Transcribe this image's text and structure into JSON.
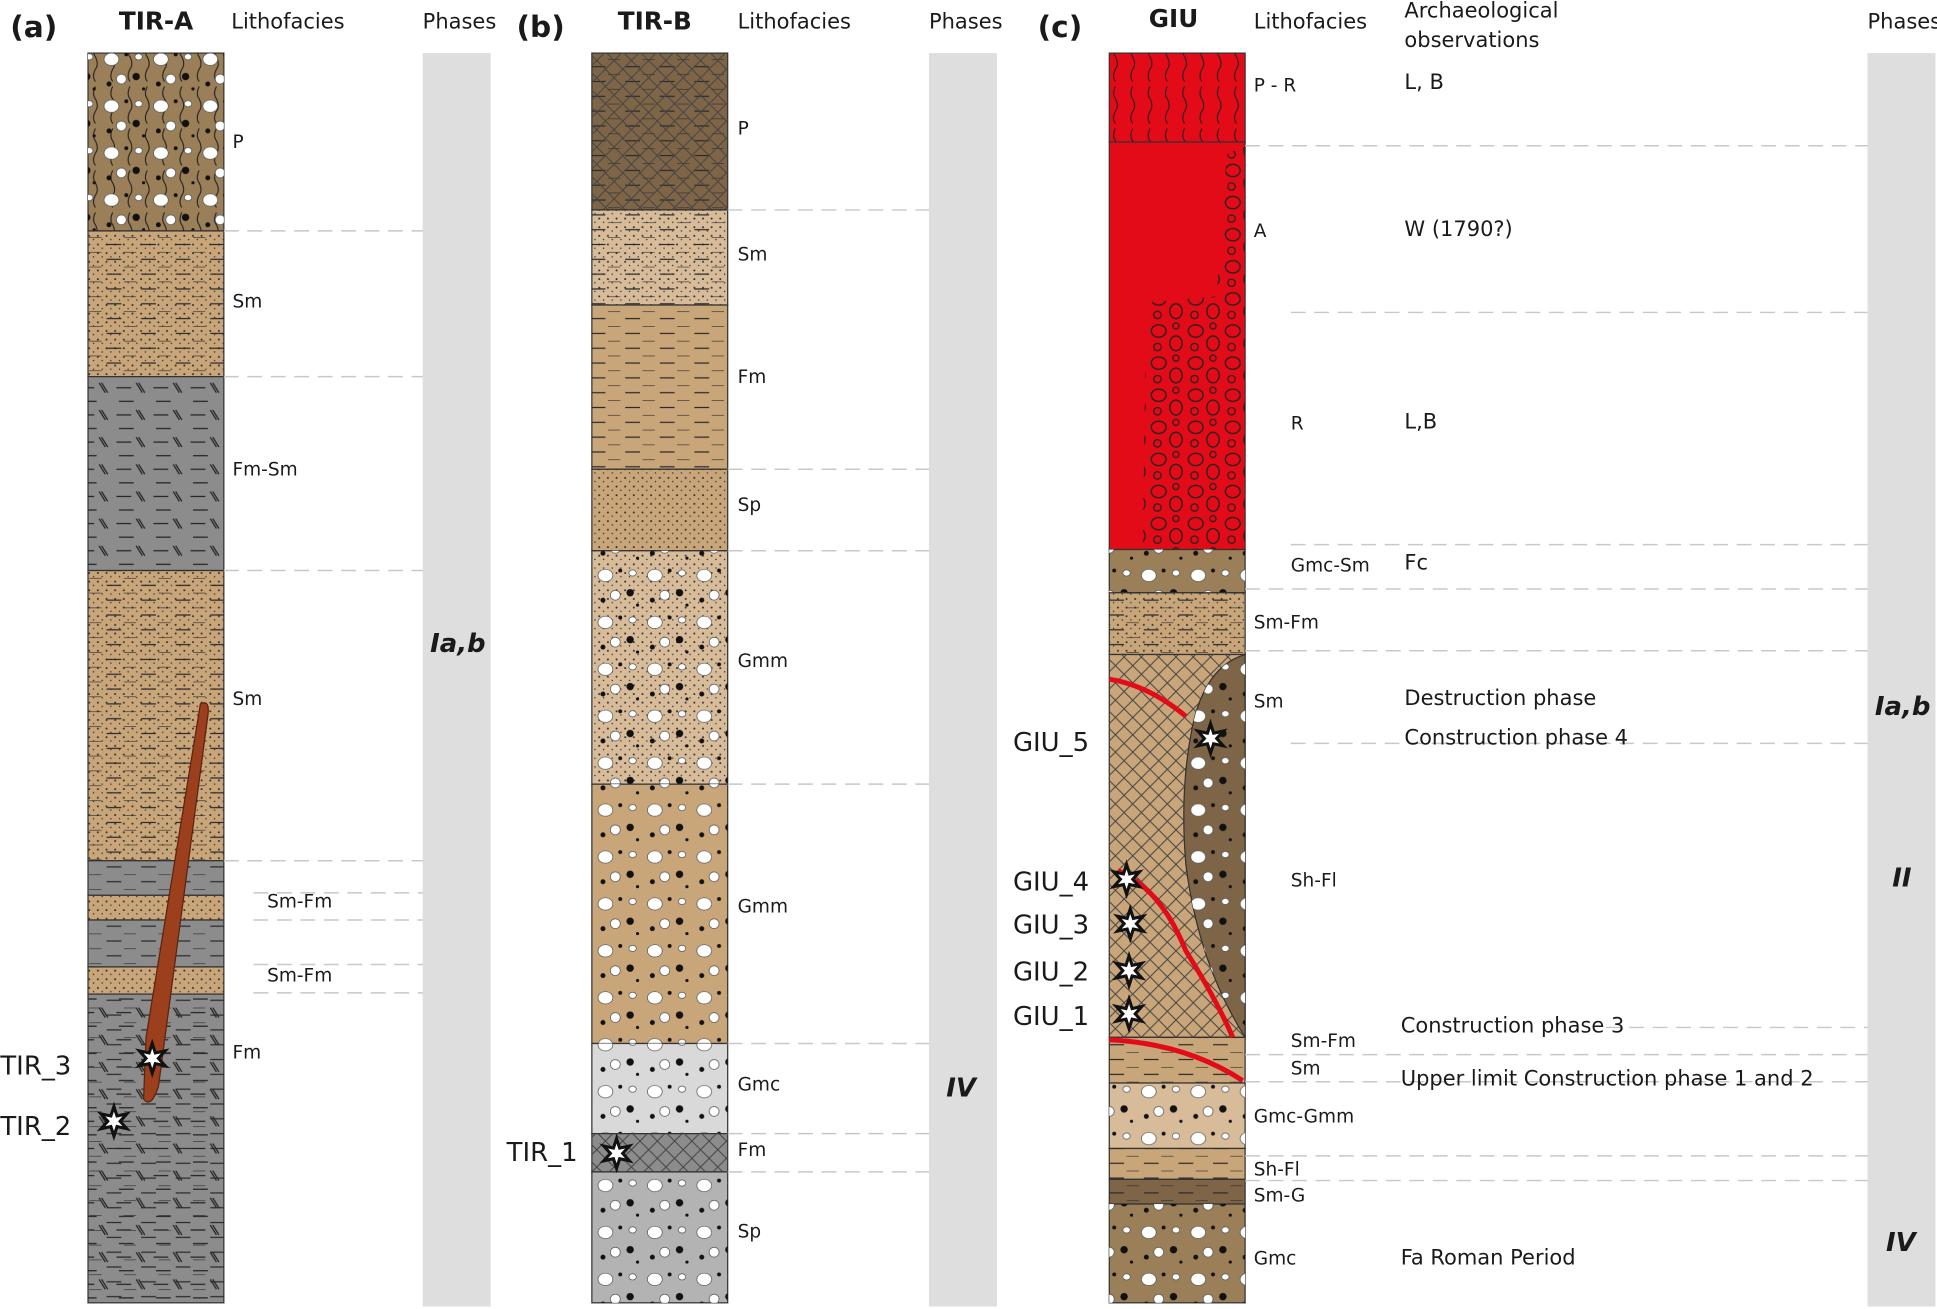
{
  "panels": [
    {
      "letter": "(a)",
      "name": "TIR-A",
      "lithofacies_header": "Lithofacies",
      "phases_header": "Phases",
      "lithofacies": [
        "P",
        "Sm",
        "Fm-Sm",
        "Sm",
        "Sm-Fm",
        "Sm-Fm",
        "Fm"
      ],
      "phases": [
        "Ia,b"
      ],
      "samples": [
        "TIR_3",
        "TIR_2"
      ]
    },
    {
      "letter": "(b)",
      "name": "TIR-B",
      "lithofacies_header": "Lithofacies",
      "phases_header": "Phases",
      "lithofacies": [
        "P",
        "Sm",
        "Fm",
        "Sp",
        "Gmm",
        "Gmm",
        "Gmc",
        "Fm",
        "Sp"
      ],
      "phases": [
        "IV"
      ],
      "samples": [
        "TIR_1"
      ]
    },
    {
      "letter": "(c)",
      "name": "GIU",
      "lithofacies_header": "Lithofacies",
      "archaeology_header": [
        "Archaeological",
        "observations"
      ],
      "phases_header": "Phases",
      "lithofacies": [
        "P - R",
        "A",
        "R",
        "Gmc-Sm",
        "Sm-Fm",
        "Sm",
        "Sh-Fl",
        "Sm-Fm",
        "Sm",
        "Gmc-Gmm",
        "Sh-Fl",
        "Sm-G",
        "Gmc"
      ],
      "archaeology": [
        "L, B",
        "W (1790?)",
        "L,B",
        "Fc",
        "Destruction phase",
        "Construction phase 4",
        "Construction phase 3",
        "Upper limit Construction phase 1 and 2",
        "Fa Roman Period"
      ],
      "phases": [
        "Ia,b",
        "II",
        "IV"
      ],
      "samples": [
        "GIU_5",
        "GIU_4",
        "GIU_3",
        "GIU_2",
        "GIU_1"
      ]
    }
  ],
  "colors": {
    "brown_dark": "#7f6547",
    "brown": "#9b7f58",
    "tan": "#c9a57a",
    "tan_light": "#d8bc9a",
    "gray": "#8c8c8c",
    "gray_light": "#d9d9d9",
    "gray_mid": "#b3b3b3",
    "red": "#e30b17",
    "root": "#9c3f1c",
    "phase_bar": "#dedede"
  }
}
